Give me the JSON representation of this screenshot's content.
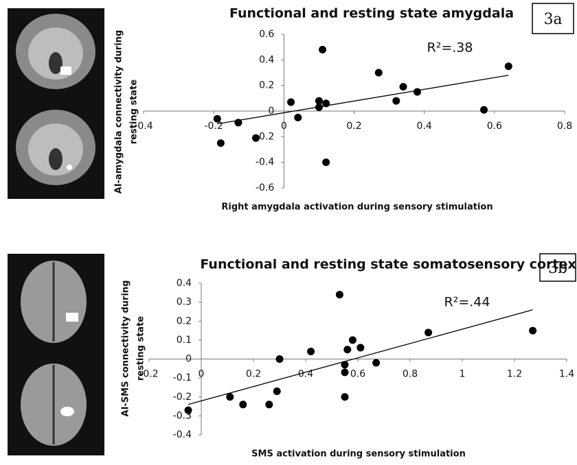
{
  "chart_data": [
    {
      "type": "scatter",
      "title": "Functional and resting state amygdala",
      "panel_label": "3a",
      "annotation": "R²=.38",
      "xlabel": "Right amygdala activation during sensory stimulation",
      "ylabel": [
        "AI-amygdala connectivity during",
        "resting state"
      ],
      "color": "#000000",
      "x": [
        -0.19,
        -0.18,
        -0.13,
        -0.08,
        0.02,
        0.04,
        0.1,
        0.1,
        0.11,
        0.12,
        0.12,
        0.27,
        0.32,
        0.34,
        0.38,
        0.57,
        0.64
      ],
      "values": [
        -0.06,
        -0.25,
        -0.09,
        -0.21,
        0.07,
        -0.05,
        0.08,
        0.03,
        0.48,
        0.06,
        -0.4,
        0.3,
        0.08,
        0.19,
        0.15,
        0.01,
        0.35
      ],
      "trendline": {
        "x": [
          -0.19,
          0.64
        ],
        "y": [
          -0.1,
          0.28
        ]
      },
      "xlim": [
        -0.4,
        0.8
      ],
      "xticks": [
        -0.4,
        -0.2,
        0,
        0.2,
        0.4,
        0.6,
        0.8
      ],
      "ylim": [
        -0.6,
        0.6
      ],
      "yticks": [
        -0.6,
        -0.4,
        -0.2,
        0,
        0.2,
        0.4,
        0.6
      ]
    },
    {
      "type": "scatter",
      "title": "Functional and resting state somatosensory cortex",
      "panel_label": "3b",
      "annotation": "R²=.44",
      "xlabel": "SMS activation during sensory stimulation",
      "ylabel": [
        "AI-SMS connectivity during",
        "resting state"
      ],
      "color": "#000000",
      "x": [
        -0.05,
        0.11,
        0.16,
        0.26,
        0.29,
        0.3,
        0.42,
        0.53,
        0.55,
        0.55,
        0.55,
        0.56,
        0.58,
        0.61,
        0.67,
        0.87,
        1.27
      ],
      "values": [
        -0.27,
        -0.2,
        -0.24,
        -0.24,
        -0.17,
        0,
        0.04,
        0.34,
        -0.07,
        -0.2,
        -0.03,
        0.05,
        0.1,
        0.06,
        -0.02,
        0.14,
        0.15
      ],
      "trendline": {
        "x": [
          -0.05,
          1.27
        ],
        "y": [
          -0.24,
          0.26
        ]
      },
      "xlim": [
        -0.2,
        1.4
      ],
      "xticks": [
        -0.2,
        0,
        0.2,
        0.4,
        0.6,
        0.8,
        1,
        1.2,
        1.4
      ],
      "ylim": [
        -0.4,
        0.4
      ],
      "yticks": [
        -0.4,
        -0.3,
        -0.2,
        -0.1,
        0,
        0.1,
        0.2,
        0.3,
        0.4
      ]
    }
  ]
}
